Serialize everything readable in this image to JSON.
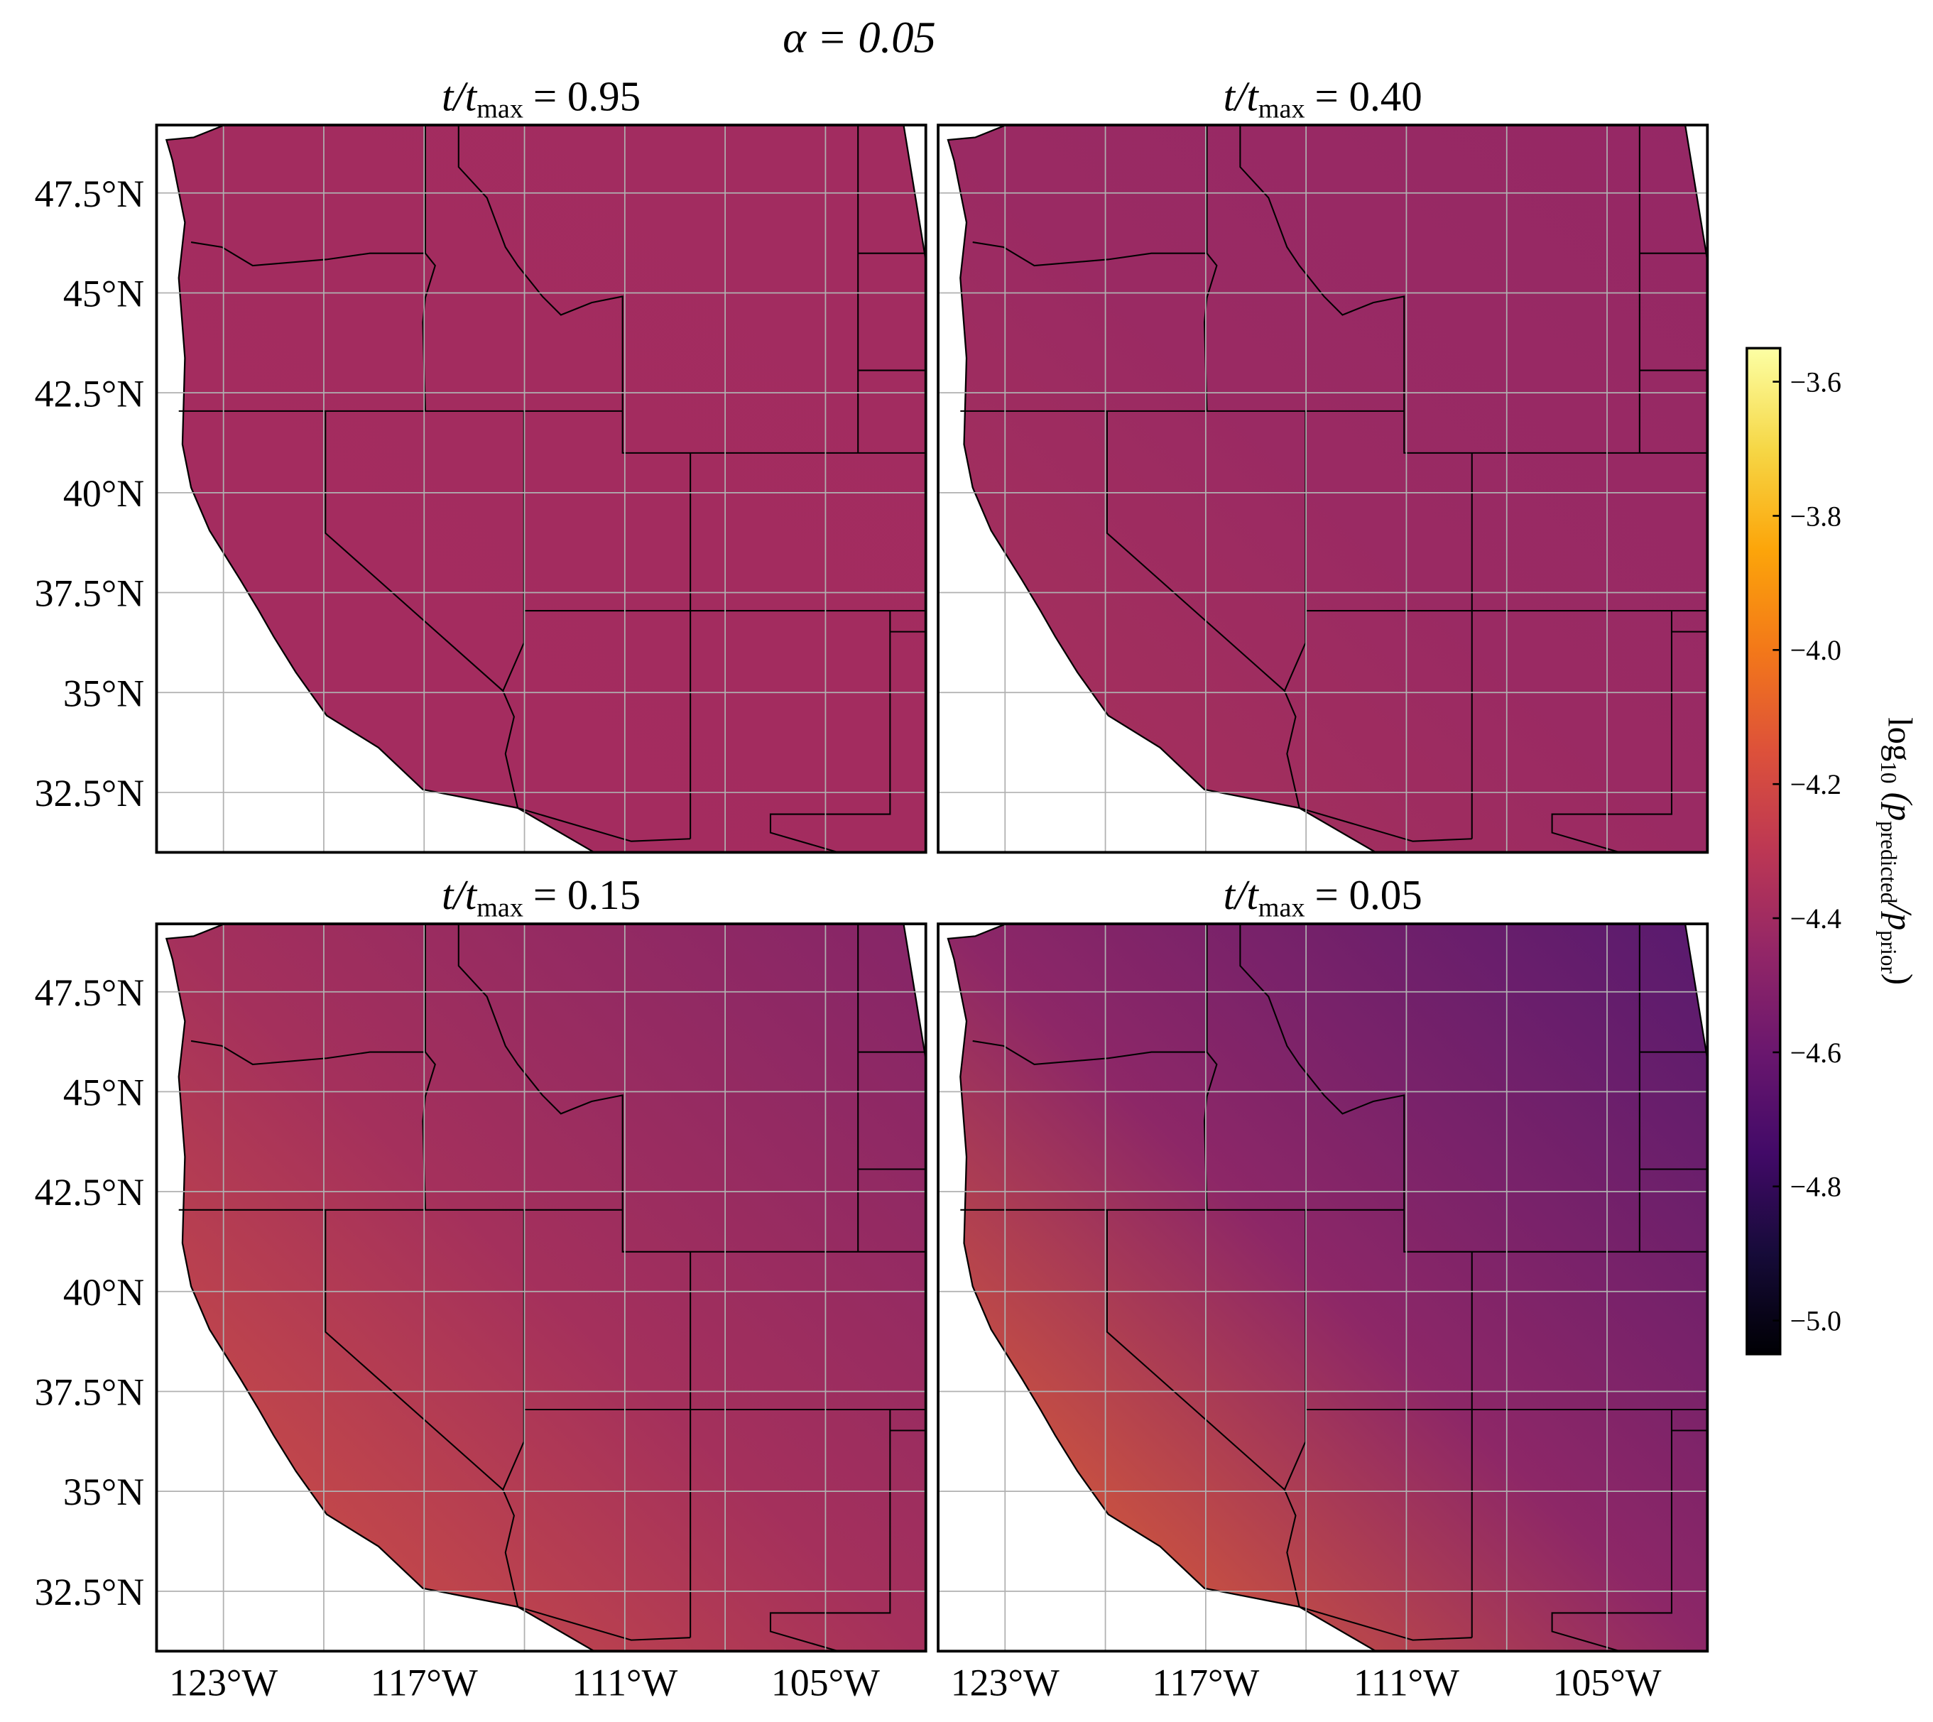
{
  "title": "α = 0.05",
  "xlim": [
    -125,
    -102
  ],
  "ylim": [
    31,
    49.2
  ],
  "xticks": [
    {
      "value": -123,
      "label": "123°W"
    },
    {
      "value": -117,
      "label": "117°W"
    },
    {
      "value": -111,
      "label": "111°W"
    },
    {
      "value": -105,
      "label": "105°W"
    }
  ],
  "x_minor_ticks": [
    -120,
    -114,
    -108
  ],
  "yticks": [
    {
      "value": 47.5,
      "label": "47.5°N"
    },
    {
      "value": 45,
      "label": "45°N"
    },
    {
      "value": 42.5,
      "label": "42.5°N"
    },
    {
      "value": 40,
      "label": "40°N"
    },
    {
      "value": 37.5,
      "label": "37.5°N"
    },
    {
      "value": 35,
      "label": "35°N"
    },
    {
      "value": 32.5,
      "label": "32.5°N"
    }
  ],
  "grid": true,
  "panels": [
    {
      "title": {
        "lhs": "t/t",
        "sub": "max",
        "rhs": "= 0.95"
      },
      "colors": [
        "#a52c5f",
        "#a32c5f",
        "#a22c60"
      ]
    },
    {
      "title": {
        "lhs": "t/t",
        "sub": "max",
        "rhs": "= 0.40"
      },
      "colors": [
        "#a83259",
        "#9a2a63",
        "#952865"
      ]
    },
    {
      "title": {
        "lhs": "t/t",
        "sub": "max",
        "rhs": "= 0.15"
      },
      "colors": [
        "#d4553f",
        "#a4305c",
        "#852568"
      ]
    },
    {
      "title": {
        "lhs": "t/t",
        "sub": "max",
        "rhs": "= 0.05"
      },
      "colors": [
        "#ec6a2a",
        "#8d2767",
        "#581a6e"
      ]
    }
  ],
  "colorbar": {
    "clim": [
      -5.05,
      -3.55
    ],
    "colormap": [
      "#000004",
      "#160b39",
      "#420a68",
      "#6a176e",
      "#932667",
      "#bc3754",
      "#dd513a",
      "#f37819",
      "#fca50a",
      "#f6d746",
      "#fcffa4"
    ],
    "ticks": [
      {
        "value": -3.6,
        "label": "−3.6"
      },
      {
        "value": -3.8,
        "label": "−3.8"
      },
      {
        "value": -4.0,
        "label": "−4.0"
      },
      {
        "value": -4.2,
        "label": "−4.2"
      },
      {
        "value": -4.4,
        "label": "−4.4"
      },
      {
        "value": -4.6,
        "label": "−4.6"
      },
      {
        "value": -4.8,
        "label": "−4.8"
      },
      {
        "value": -5.0,
        "label": "−5.0"
      }
    ],
    "label": {
      "log": "log",
      "log_sub": "10",
      "open": " (p",
      "num_sub": "predicted",
      "slash": "/p",
      "den_sub": "prior",
      "close": ")"
    }
  }
}
